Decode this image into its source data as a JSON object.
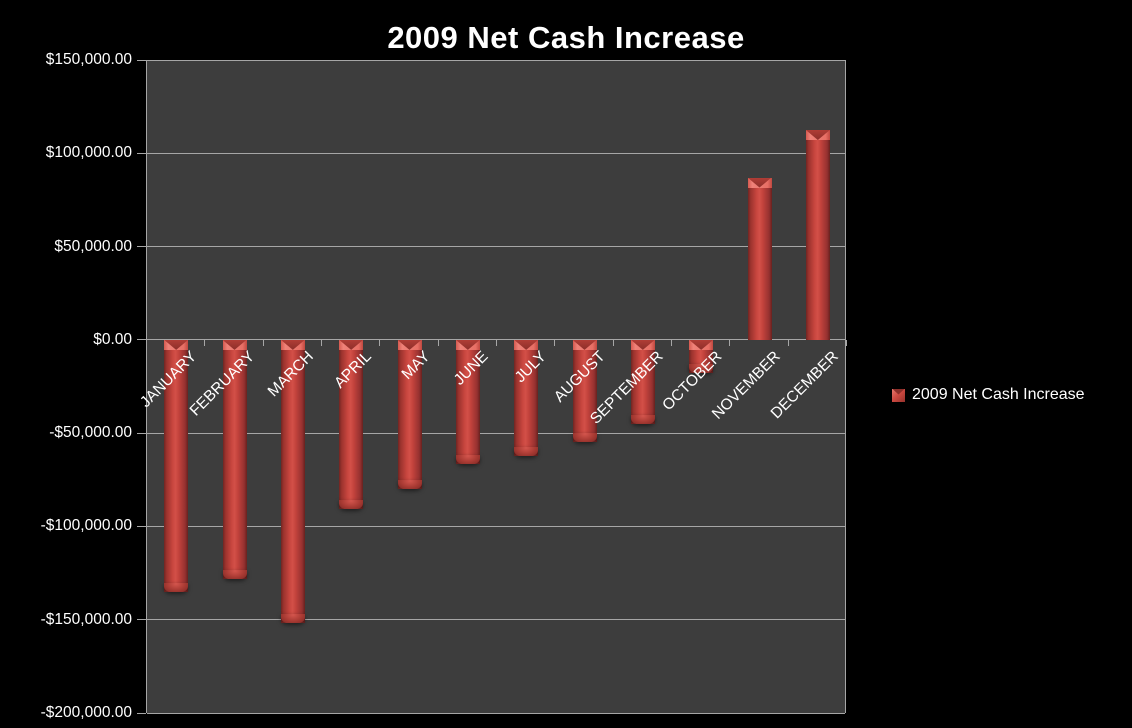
{
  "title": "2009 Net Cash Increase",
  "legend": {
    "label": "2009 Net Cash Increase"
  },
  "colors": {
    "background": "#000000",
    "plot_background": "#3d3d3d",
    "gridline": "#a6a6a6",
    "bar_fill": "#c7453e",
    "bar_edge": "#6f2522",
    "text": "#ffffff"
  },
  "chart_data": {
    "type": "bar",
    "title": "2009 Net Cash Increase",
    "categories": [
      "JANUARY",
      "FEBRUARY",
      "MARCH",
      "APRIL",
      "MAY",
      "JUNE",
      "JULY",
      "AUGUST",
      "SEPTEMBER",
      "OCTOBER",
      "NOVEMBER",
      "DECEMBER"
    ],
    "series": [
      {
        "name": "2009 Net Cash Increase",
        "values": [
          -135000,
          -128000,
          -152000,
          -90500,
          -80000,
          -66500,
          -62500,
          -54500,
          -45000,
          -18000,
          87000,
          112500
        ]
      }
    ],
    "xlabel": "",
    "ylabel": "",
    "ylim": [
      -200000,
      150000
    ],
    "y_ticks": [
      {
        "label": "$150,000.00",
        "value": 150000
      },
      {
        "label": "$100,000.00",
        "value": 100000
      },
      {
        "label": "$50,000.00",
        "value": 50000
      },
      {
        "label": "$0.00",
        "value": 0
      },
      {
        "label": "-$50,000.00",
        "value": -50000
      },
      {
        "label": "-$100,000.00",
        "value": -100000
      },
      {
        "label": "-$150,000.00",
        "value": -150000
      },
      {
        "label": "-$200,000.00",
        "value": -200000
      }
    ],
    "grid": true,
    "legend_position": "right"
  }
}
